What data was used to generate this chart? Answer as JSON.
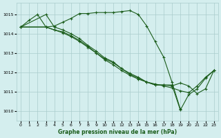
{
  "title": "Graphe pression niveau de la mer (hPa)",
  "background_color": "#d4eeee",
  "grid_color": "#aacccc",
  "line_color": "#1a5c1a",
  "xlim": [
    -0.5,
    23.5
  ],
  "ylim": [
    1009.5,
    1015.6
  ],
  "yticks": [
    1010,
    1011,
    1012,
    1013,
    1014,
    1015
  ],
  "xticks": [
    0,
    1,
    2,
    3,
    4,
    5,
    6,
    7,
    8,
    9,
    10,
    11,
    12,
    13,
    14,
    15,
    16,
    17,
    18,
    19,
    20,
    21,
    22,
    23
  ],
  "series": [
    {
      "x": [
        0,
        1,
        2,
        3,
        4,
        5,
        6,
        7,
        8,
        9,
        10,
        11,
        12,
        13,
        14,
        15,
        16,
        17,
        18,
        19
      ],
      "y": [
        1014.35,
        1014.7,
        1015.0,
        1014.35,
        1014.4,
        1014.6,
        1014.8,
        1015.05,
        1015.05,
        1015.1,
        1015.1,
        1015.1,
        1015.15,
        1015.2,
        1015.0,
        1014.4,
        1013.6,
        1012.8,
        1011.5,
        1010.1
      ]
    },
    {
      "x": [
        0,
        3,
        4,
        5,
        6,
        7,
        8,
        9,
        10,
        11,
        12,
        13,
        14,
        15,
        16,
        17,
        18,
        19,
        20,
        21,
        22,
        23
      ],
      "y": [
        1014.35,
        1014.35,
        1014.2,
        1014.05,
        1013.85,
        1013.6,
        1013.3,
        1013.0,
        1012.7,
        1012.5,
        1012.2,
        1011.95,
        1011.75,
        1011.5,
        1011.4,
        1011.3,
        1011.2,
        1011.05,
        1010.95,
        1011.3,
        1011.75,
        1012.1
      ]
    },
    {
      "x": [
        0,
        3,
        4,
        5,
        6,
        7,
        8,
        9,
        10,
        11,
        12,
        13,
        14,
        15,
        16,
        17,
        18,
        19,
        20,
        21,
        22,
        23
      ],
      "y": [
        1014.35,
        1015.0,
        1014.35,
        1014.2,
        1014.0,
        1013.75,
        1013.4,
        1013.1,
        1012.75,
        1012.55,
        1012.2,
        1011.9,
        1011.7,
        1011.5,
        1011.35,
        1011.35,
        1011.35,
        1010.05,
        1010.85,
        1011.15,
        1011.7,
        1012.1
      ]
    },
    {
      "x": [
        0,
        3,
        4,
        5,
        6,
        7,
        8,
        9,
        10,
        11,
        12,
        13,
        14,
        15,
        16,
        17,
        18,
        19,
        20,
        21,
        22,
        23
      ],
      "y": [
        1014.35,
        1014.35,
        1014.2,
        1014.1,
        1013.9,
        1013.65,
        1013.35,
        1013.0,
        1012.65,
        1012.4,
        1012.1,
        1011.85,
        1011.65,
        1011.5,
        1011.35,
        1011.35,
        1011.3,
        1011.45,
        1011.3,
        1010.9,
        1011.15,
        1012.1
      ]
    }
  ]
}
